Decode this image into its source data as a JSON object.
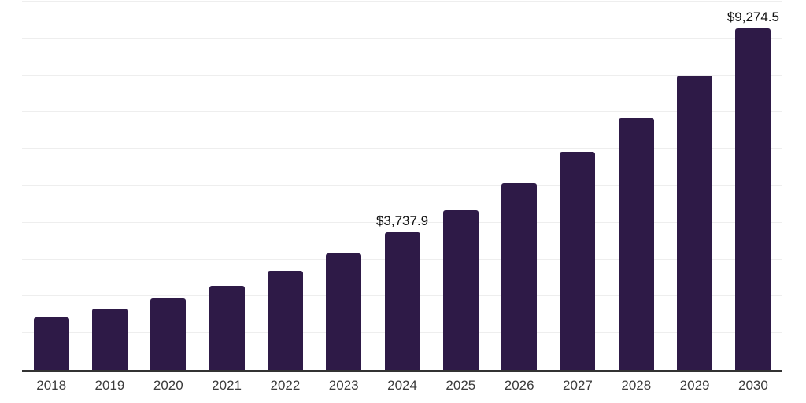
{
  "chart_data": {
    "type": "bar",
    "title": "",
    "xlabel": "",
    "ylabel": "",
    "categories": [
      "2018",
      "2019",
      "2020",
      "2021",
      "2022",
      "2023",
      "2024",
      "2025",
      "2026",
      "2027",
      "2028",
      "2029",
      "2030"
    ],
    "values": [
      1428,
      1663,
      1956,
      2292,
      2704,
      3174,
      3737.9,
      4349,
      5070,
      5910,
      6830,
      7985,
      9274.5
    ],
    "data_labels": [
      "",
      "",
      "",
      "",
      "",
      "",
      "$3,737.9",
      "",
      "",
      "",
      "",
      "",
      "$9,274.5"
    ],
    "ylim": [
      0,
      10000
    ],
    "gridline_interval": 1000,
    "grid": true,
    "legend": false,
    "colors": {
      "bar": "#2E1A47",
      "grid": "#eeeeee",
      "axis": "#333333",
      "tick_label": "#3c3c3c",
      "data_label": "#111111",
      "background": "#ffffff"
    }
  }
}
